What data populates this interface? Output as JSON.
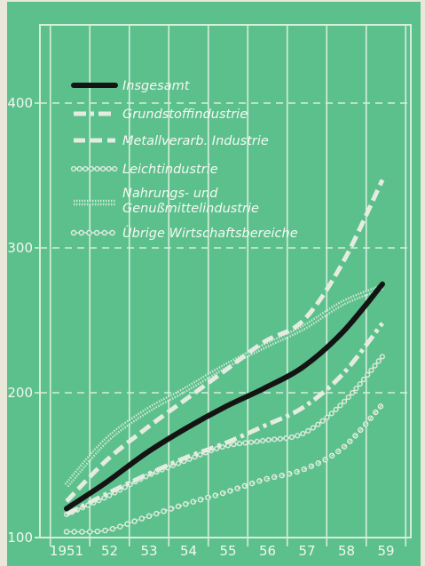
{
  "chart_data": {
    "type": "line",
    "title": "",
    "xlabel": "",
    "ylabel": "",
    "x": [
      "1951",
      "52",
      "53",
      "54",
      "55",
      "56",
      "57",
      "58",
      "59"
    ],
    "y_ticks": [
      "100",
      "200",
      "300",
      "400"
    ],
    "ylim": [
      100,
      430
    ],
    "grid": true,
    "legend_position": "top-left",
    "background_color": "#5cc08c",
    "series": [
      {
        "name": "Insgesamt",
        "style": "solid-thick-black",
        "color": "#141414",
        "values": [
          120,
          138,
          158,
          175,
          190,
          203,
          218,
          242,
          275
        ]
      },
      {
        "name": "Grundstoffindustrie",
        "style": "dash-dot",
        "color": "#e4ece0",
        "values": [
          116,
          130,
          143,
          155,
          165,
          177,
          190,
          213,
          248
        ]
      },
      {
        "name": "Metallverarb. Industrie",
        "style": "dashed",
        "color": "#e4ece0",
        "values": [
          125,
          153,
          175,
          195,
          215,
          235,
          250,
          290,
          347
        ]
      },
      {
        "name": "Leichtindustrie",
        "style": "ring-chain",
        "color": "#e4ece0",
        "values": [
          116,
          128,
          142,
          153,
          163,
          167,
          172,
          193,
          225
        ]
      },
      {
        "name": "Nahrungs- und Genußmittelindustrie",
        "style": "double-dotted",
        "color": "#e4ece0",
        "values": [
          136,
          167,
          187,
          202,
          218,
          232,
          245,
          262,
          273
        ]
      },
      {
        "name": "Übrige Wirtschaftsbereiche",
        "style": "dotted-circles",
        "color": "#e4ece0",
        "values": [
          104,
          105,
          114,
          123,
          131,
          140,
          147,
          162,
          192
        ]
      }
    ]
  }
}
